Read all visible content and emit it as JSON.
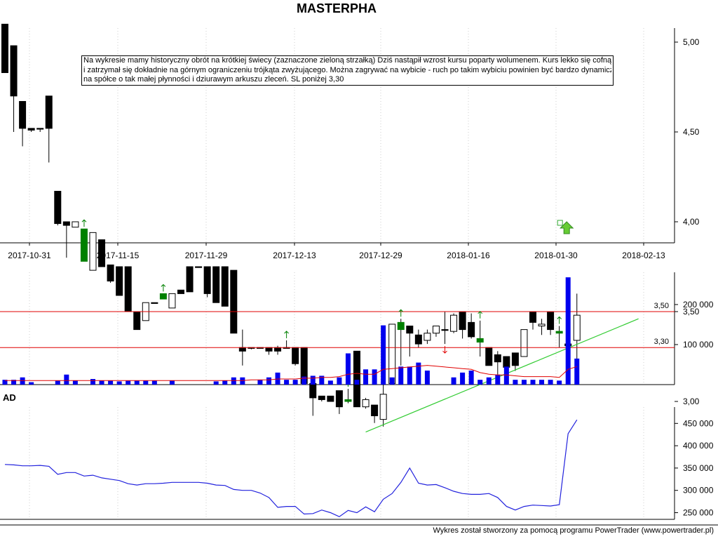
{
  "title": "MASTERPHA",
  "note_lines": [
    "Na wykresie mamy historyczny obrót na krótkiej świecy (zaznaczone zieloną strzałką) Dziś nastąpił wzrost kursu poparty wolumenem. Kurs lekko się cofnął",
    "i zatrzymał się dokładnie na górnym ograniczeniu trójkąta zwyżującego. Można zagrywać na wybicie - ruch po takim wybiciu powinien być bardzo dynamiczny",
    "na spółce o tak małej płynności i dziurawym arkuszu zleceń.  SL poniżej 3,30"
  ],
  "ad_label": "AD",
  "footer": "Wykres został stworzony za pomocą programu PowerTrader (www.powertrader.pl)",
  "colors": {
    "up_candle": "#008000",
    "down_candle": "#000000",
    "level_line": "#e00000",
    "trend_line": "#33cc33",
    "volume_bar": "#0000ee",
    "volume_avg": "#e00000",
    "ad_line": "#2222dd"
  },
  "chart_data": [
    {
      "type": "candlestick",
      "x_ticks": [
        "2017-10-31",
        "2017-11-15",
        "2017-11-29",
        "2017-12-13",
        "2017-12-29",
        "2018-01-16",
        "2018-01-30",
        "2018-02-13"
      ],
      "y_ticks": [
        "5,00",
        "4,50",
        "4,00",
        "3,50",
        "3,00"
      ],
      "ylim": [
        2.78,
        5.1
      ],
      "levels": [
        {
          "value": 3.5,
          "label": "3,50"
        },
        {
          "value": 3.3,
          "label": "3,30"
        }
      ],
      "trend_line": {
        "from_index": 41,
        "from_value": 2.83,
        "to_index": 72,
        "to_value": 3.46
      },
      "candles": [
        {
          "i": 0,
          "o": 5.1,
          "h": 5.1,
          "l": 4.83,
          "c": 4.83
        },
        {
          "i": 1,
          "o": 4.98,
          "h": 4.98,
          "l": 4.5,
          "c": 4.7
        },
        {
          "i": 2,
          "o": 4.67,
          "h": 4.67,
          "l": 4.42,
          "c": 4.52
        },
        {
          "i": 3,
          "o": 4.52,
          "h": 4.52,
          "l": 4.5,
          "c": 4.51
        },
        {
          "i": 4,
          "o": 4.52,
          "h": 4.52,
          "l": 4.5,
          "c": 4.52
        },
        {
          "i": 5,
          "o": 4.7,
          "h": 4.7,
          "l": 4.33,
          "c": 4.52
        },
        {
          "i": 6,
          "o": 4.17,
          "h": 4.17,
          "l": 3.98,
          "c": 3.99
        },
        {
          "i": 7,
          "o": 4.0,
          "h": 4.0,
          "l": 3.8,
          "c": 3.98
        },
        {
          "i": 8,
          "o": 3.97,
          "h": 4.0,
          "l": 3.97,
          "c": 4.0
        },
        {
          "i": 9,
          "o": 3.78,
          "h": 3.96,
          "l": 3.78,
          "c": 3.96,
          "arrow": "up"
        },
        {
          "i": 10,
          "o": 3.73,
          "h": 3.94,
          "l": 3.73,
          "c": 3.94
        },
        {
          "i": 11,
          "o": 3.9,
          "h": 3.9,
          "l": 3.75,
          "c": 3.75
        },
        {
          "i": 12,
          "o": 3.76,
          "h": 3.76,
          "l": 3.66,
          "c": 3.67
        },
        {
          "i": 13,
          "o": 3.75,
          "h": 3.75,
          "l": 3.59,
          "c": 3.59
        },
        {
          "i": 14,
          "o": 3.75,
          "h": 3.75,
          "l": 3.5,
          "c": 3.5
        },
        {
          "i": 15,
          "o": 3.5,
          "h": 3.5,
          "l": 3.4,
          "c": 3.4
        },
        {
          "i": 16,
          "o": 3.45,
          "h": 3.55,
          "l": 3.45,
          "c": 3.55
        },
        {
          "i": 17,
          "o": 3.55,
          "h": 3.55,
          "l": 3.55,
          "c": 3.55
        },
        {
          "i": 18,
          "o": 3.57,
          "h": 3.6,
          "l": 3.57,
          "c": 3.6,
          "arrow": "up"
        },
        {
          "i": 19,
          "o": 3.52,
          "h": 3.6,
          "l": 3.52,
          "c": 3.6
        },
        {
          "i": 20,
          "o": 3.62,
          "h": 3.62,
          "l": 3.6,
          "c": 3.6
        },
        {
          "i": 21,
          "o": 3.75,
          "h": 3.75,
          "l": 3.61,
          "c": 3.61
        },
        {
          "i": 22,
          "o": 3.75,
          "h": 3.75,
          "l": 3.75,
          "c": 3.75
        },
        {
          "i": 23,
          "o": 3.75,
          "h": 3.75,
          "l": 3.58,
          "c": 3.6
        },
        {
          "i": 24,
          "o": 3.75,
          "h": 3.75,
          "l": 3.55,
          "c": 3.55
        },
        {
          "i": 25,
          "o": 3.75,
          "h": 3.75,
          "l": 3.53,
          "c": 3.53
        },
        {
          "i": 26,
          "o": 3.73,
          "h": 3.73,
          "l": 3.38,
          "c": 3.38
        },
        {
          "i": 27,
          "o": 3.3,
          "h": 3.4,
          "l": 3.2,
          "c": 3.28
        },
        {
          "i": 28,
          "o": 3.3,
          "h": 3.3,
          "l": 3.29,
          "c": 3.3
        },
        {
          "i": 29,
          "o": 3.3,
          "h": 3.3,
          "l": 3.3,
          "c": 3.3
        },
        {
          "i": 30,
          "o": 3.3,
          "h": 3.3,
          "l": 3.26,
          "c": 3.28
        },
        {
          "i": 31,
          "o": 3.3,
          "h": 3.31,
          "l": 3.26,
          "c": 3.28
        },
        {
          "i": 32,
          "o": 3.3,
          "h": 3.34,
          "l": 3.3,
          "c": 3.3,
          "arrow": "up"
        },
        {
          "i": 33,
          "o": 3.3,
          "h": 3.3,
          "l": 3.2,
          "c": 3.21
        },
        {
          "i": 34,
          "o": 3.3,
          "h": 3.3,
          "l": 3.1,
          "c": 3.1
        },
        {
          "i": 35,
          "o": 3.1,
          "h": 3.1,
          "l": 2.92,
          "c": 3.02
        },
        {
          "i": 36,
          "o": 3.03,
          "h": 3.03,
          "l": 3.0,
          "c": 3.01
        },
        {
          "i": 37,
          "o": 3.03,
          "h": 3.03,
          "l": 3.0,
          "c": 3.0
        },
        {
          "i": 38,
          "o": 3.06,
          "h": 3.06,
          "l": 2.93,
          "c": 2.97
        },
        {
          "i": 39,
          "o": 3.0,
          "h": 3.07,
          "l": 2.99,
          "c": 3.01,
          "arrow": "up"
        },
        {
          "i": 40,
          "o": 3.28,
          "h": 3.28,
          "l": 2.97,
          "c": 2.97
        },
        {
          "i": 41,
          "o": 2.97,
          "h": 3.02,
          "l": 2.96,
          "c": 3.01
        },
        {
          "i": 42,
          "o": 2.98,
          "h": 2.98,
          "l": 2.88,
          "c": 2.92
        },
        {
          "i": 43,
          "o": 2.9,
          "h": 3.15,
          "l": 2.86,
          "c": 3.04
        },
        {
          "i": 44,
          "o": 3.1,
          "h": 3.43,
          "l": 3.1,
          "c": 3.43
        },
        {
          "i": 45,
          "o": 3.4,
          "h": 3.46,
          "l": 3.2,
          "c": 3.44,
          "arrow": "up"
        },
        {
          "i": 46,
          "o": 3.42,
          "h": 3.42,
          "l": 3.25,
          "c": 3.38
        },
        {
          "i": 47,
          "o": 3.37,
          "h": 3.4,
          "l": 3.3,
          "c": 3.32
        },
        {
          "i": 48,
          "o": 3.34,
          "h": 3.4,
          "l": 3.32,
          "c": 3.38
        },
        {
          "i": 49,
          "o": 3.38,
          "h": 3.42,
          "l": 3.36,
          "c": 3.42
        },
        {
          "i": 50,
          "o": 3.4,
          "h": 3.5,
          "l": 3.32,
          "c": 3.4,
          "arrow": "down"
        },
        {
          "i": 51,
          "o": 3.39,
          "h": 3.49,
          "l": 3.38,
          "c": 3.48
        },
        {
          "i": 52,
          "o": 3.5,
          "h": 3.5,
          "l": 3.35,
          "c": 3.4
        },
        {
          "i": 53,
          "o": 3.44,
          "h": 3.49,
          "l": 3.35,
          "c": 3.36
        },
        {
          "i": 54,
          "o": 3.35,
          "h": 3.45,
          "l": 3.25,
          "c": 3.33,
          "arrow": "up"
        },
        {
          "i": 55,
          "o": 3.3,
          "h": 3.3,
          "l": 3.2,
          "c": 3.2
        },
        {
          "i": 56,
          "o": 3.26,
          "h": 3.28,
          "l": 3.15,
          "c": 3.22
        },
        {
          "i": 57,
          "o": 3.25,
          "h": 3.25,
          "l": 3.19,
          "c": 3.19
        },
        {
          "i": 58,
          "o": 3.27,
          "h": 3.27,
          "l": 3.17,
          "c": 3.2
        },
        {
          "i": 59,
          "o": 3.25,
          "h": 3.4,
          "l": 3.25,
          "c": 3.4
        },
        {
          "i": 60,
          "o": 3.5,
          "h": 3.5,
          "l": 3.4,
          "c": 3.44
        },
        {
          "i": 61,
          "o": 3.42,
          "h": 3.46,
          "l": 3.37,
          "c": 3.43
        },
        {
          "i": 62,
          "o": 3.5,
          "h": 3.5,
          "l": 3.37,
          "c": 3.4
        },
        {
          "i": 63,
          "o": 3.38,
          "h": 3.42,
          "l": 3.3,
          "c": 3.39,
          "arrow": "up"
        },
        {
          "i": 64,
          "o": 3.32,
          "h": 3.32,
          "l": 3.3,
          "c": 3.31
        },
        {
          "i": 65,
          "o": 3.34,
          "h": 3.6,
          "l": 3.23,
          "c": 3.48,
          "marker": "big-arrow"
        }
      ]
    },
    {
      "type": "bar",
      "y_ticks": [
        "200 000",
        "100 000"
      ],
      "ylim": [
        0,
        270000
      ],
      "values": [
        12000,
        12000,
        18000,
        6000,
        0,
        0,
        10000,
        25000,
        10000,
        0,
        14000,
        10000,
        10000,
        8000,
        10000,
        10000,
        10000,
        10000,
        0,
        10000,
        0,
        0,
        0,
        0,
        8000,
        10000,
        18000,
        18000,
        0,
        12000,
        18000,
        30000,
        12000,
        12000,
        20000,
        22000,
        22000,
        10000,
        18000,
        78000,
        12000,
        38000,
        38000,
        148000,
        18000,
        45000,
        45000,
        55000,
        35000,
        0,
        0,
        18000,
        30000,
        35000,
        12000,
        18000,
        25000,
        45000,
        12000,
        12000,
        12000,
        12000,
        12000,
        10000,
        268000,
        65000
      ],
      "avg": [
        10000,
        10000,
        10000,
        10000,
        10000,
        10000,
        10000,
        10000,
        10000,
        10000,
        10000,
        10000,
        10000,
        10000,
        10000,
        10000,
        10000,
        10000,
        10000,
        10000,
        10000,
        10000,
        10000,
        10000,
        10000,
        10000,
        10000,
        10000,
        12000,
        12000,
        12000,
        14000,
        14000,
        14000,
        16000,
        16000,
        18000,
        18000,
        20000,
        26000,
        28000,
        26000,
        26000,
        38000,
        40000,
        42000,
        44000,
        46000,
        48000,
        46000,
        44000,
        42000,
        40000,
        38000,
        30000,
        26000,
        24000,
        24000,
        22000,
        20000,
        20000,
        20000,
        20000,
        18000,
        38000,
        45000
      ]
    },
    {
      "type": "line",
      "label": "AD",
      "y_ticks": [
        "450 000",
        "400 000",
        "350 000",
        "300 000",
        "250 000"
      ],
      "ylim": [
        225000,
        470000
      ],
      "values": [
        358000,
        357000,
        355000,
        355000,
        356000,
        354000,
        336000,
        340000,
        340000,
        332000,
        334000,
        328000,
        325000,
        322000,
        315000,
        312000,
        315000,
        315000,
        316000,
        318000,
        318000,
        318000,
        318000,
        316000,
        312000,
        311000,
        302000,
        300000,
        300000,
        294000,
        284000,
        262000,
        264000,
        264000,
        247000,
        248000,
        256000,
        250000,
        241000,
        255000,
        250000,
        263000,
        252000,
        280000,
        293000,
        318000,
        350000,
        316000,
        312000,
        313000,
        306000,
        298000,
        293000,
        291000,
        291000,
        293000,
        284000,
        264000,
        256000,
        264000,
        267000,
        266000,
        265000,
        268000,
        427000,
        458000
      ]
    }
  ]
}
